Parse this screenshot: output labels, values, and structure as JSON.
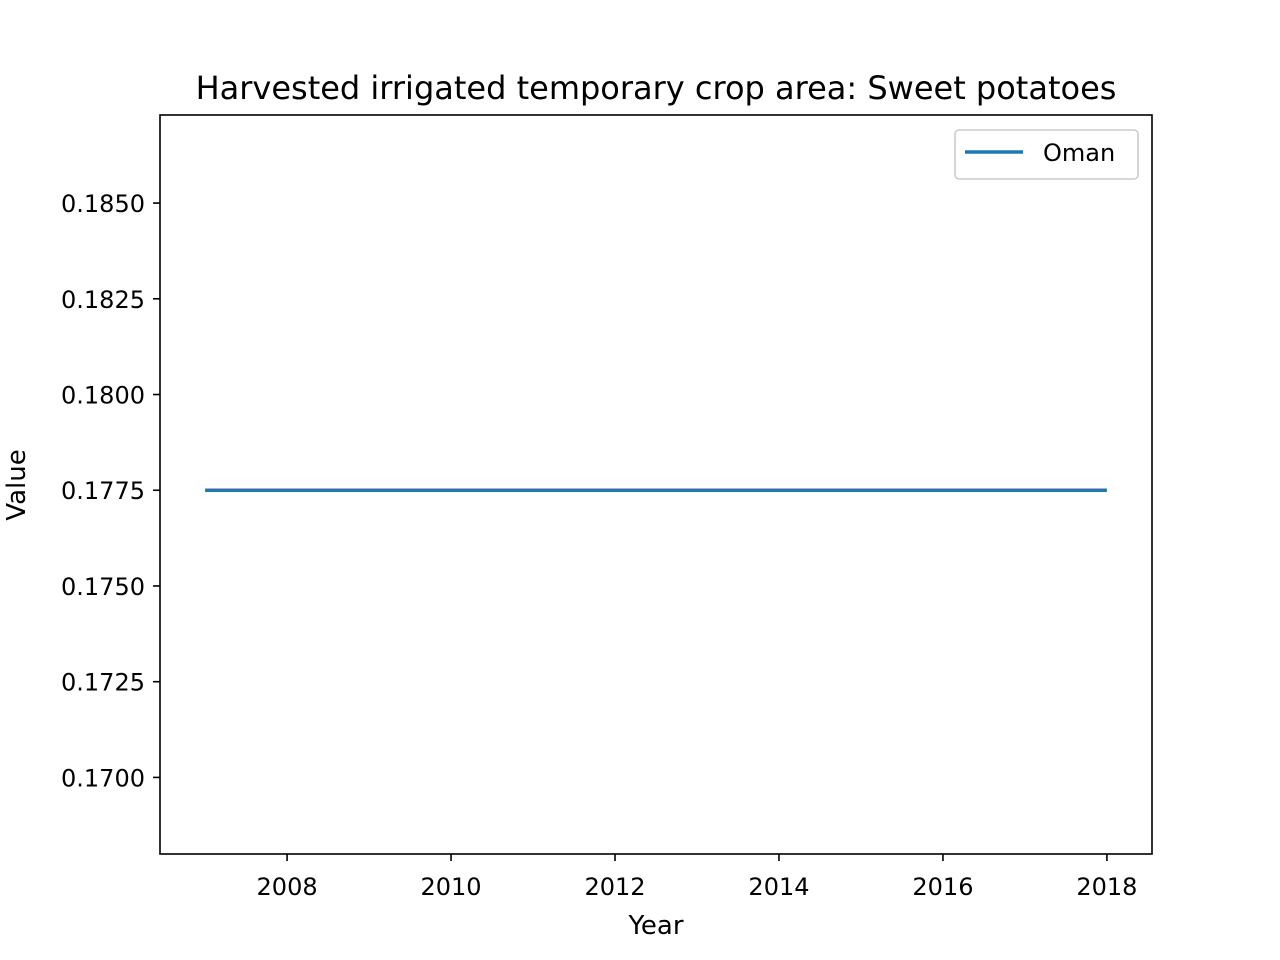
{
  "chart_data": {
    "type": "line",
    "title": "Harvested irrigated temporary crop area: Sweet potatoes",
    "xlabel": "Year",
    "ylabel": "Value",
    "x": [
      2007,
      2008,
      2009,
      2010,
      2011,
      2012,
      2013,
      2014,
      2015,
      2016,
      2017,
      2018
    ],
    "series": [
      {
        "name": "Oman",
        "values": [
          0.1775,
          0.1775,
          0.1775,
          0.1775,
          0.1775,
          0.1775,
          0.1775,
          0.1775,
          0.1775,
          0.1775,
          0.1775,
          0.1775
        ],
        "color": "#1f77b4"
      }
    ],
    "xlim": [
      2006.45,
      2018.55
    ],
    "ylim": [
      0.168,
      0.1873
    ],
    "xticks": [
      2008,
      2010,
      2012,
      2014,
      2016,
      2018
    ],
    "yticks": [
      0.17,
      0.1725,
      0.175,
      0.1775,
      0.18,
      0.1825,
      0.185
    ],
    "ytick_labels": [
      "0.1700",
      "0.1725",
      "0.1750",
      "0.1775",
      "0.1800",
      "0.1825",
      "0.1850"
    ],
    "grid": false,
    "legend_position": "upper-right"
  }
}
